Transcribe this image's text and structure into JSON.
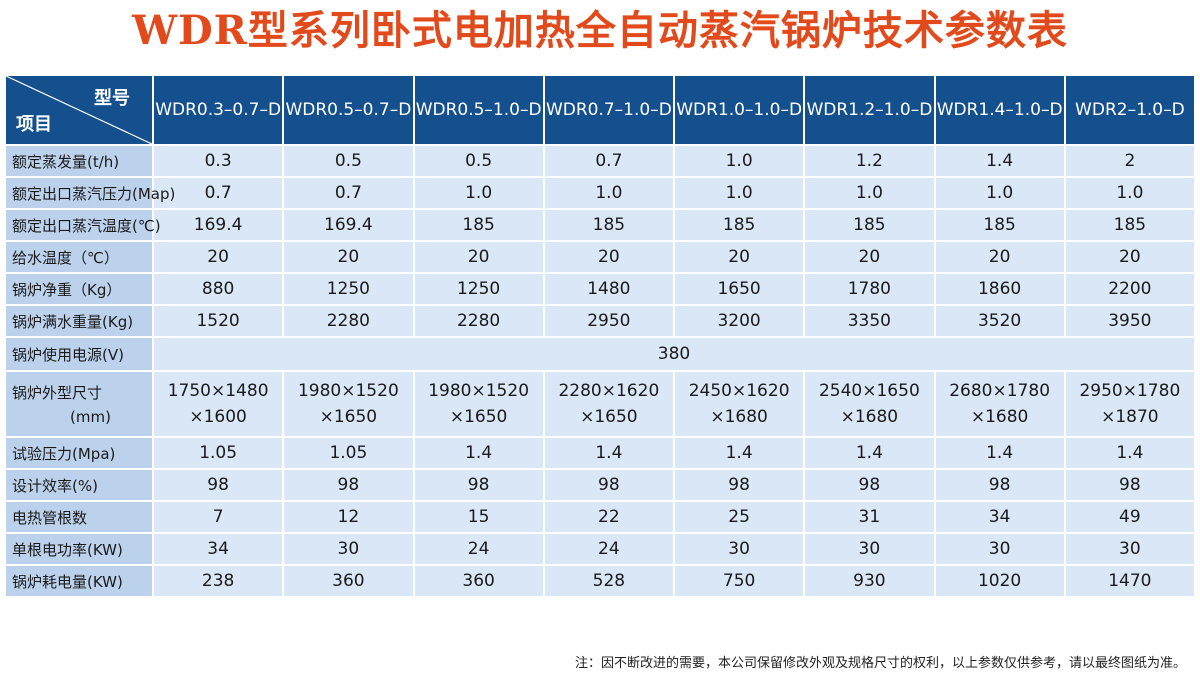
{
  "title": "WDR型系列卧式电加热全自动蒸汽锅炉技术参数表",
  "header": {
    "corner_model": "型号",
    "corner_item": "项目",
    "models": [
      "WDR0.3–0.7–D",
      "WDR0.5–0.7–D",
      "WDR0.5–1.0–D",
      "WDR0.7–1.0–D",
      "WDR1.0–1.0–D",
      "WDR1.2–1.0–D",
      "WDR1.4–1.0–D",
      "WDR2–1.0–D"
    ]
  },
  "rows": [
    {
      "label": "额定蒸发量(t/h)",
      "values": [
        "0.3",
        "0.5",
        "0.5",
        "0.7",
        "1.0",
        "1.2",
        "1.4",
        "2"
      ]
    },
    {
      "label": "额定出口蒸汽压力(Map)",
      "values": [
        "0.7",
        "0.7",
        "1.0",
        "1.0",
        "1.0",
        "1.0",
        "1.0",
        "1.0"
      ]
    },
    {
      "label": "额定出口蒸汽温度(℃)",
      "values": [
        "169.4",
        "169.4",
        "185",
        "185",
        "185",
        "185",
        "185",
        "185"
      ]
    },
    {
      "label": "给水温度（℃）",
      "values": [
        "20",
        "20",
        "20",
        "20",
        "20",
        "20",
        "20",
        "20"
      ]
    },
    {
      "label": "锅炉净重（Kg）",
      "values": [
        "880",
        "1250",
        "1250",
        "1480",
        "1650",
        "1780",
        "1860",
        "2200"
      ]
    },
    {
      "label": "锅炉满水重量(Kg)",
      "values": [
        "1520",
        "2280",
        "2280",
        "2950",
        "3200",
        "3350",
        "3520",
        "3950"
      ]
    },
    {
      "label": "锅炉使用电源(V)",
      "merged_value": "380"
    },
    {
      "label": "锅炉外型尺寸",
      "label2": "(mm)",
      "values_line1": [
        "1750×1480",
        "1980×1520",
        "1980×1520",
        "2280×1620",
        "2450×1620",
        "2540×1650",
        "2680×1780",
        "2950×1780"
      ],
      "values_line2": [
        "×1600",
        "×1650",
        "×1650",
        "×1650",
        "×1680",
        "×1680",
        "×1680",
        "×1870"
      ]
    },
    {
      "label": "试验压力(Mpa)",
      "values": [
        "1.05",
        "1.05",
        "1.4",
        "1.4",
        "1.4",
        "1.4",
        "1.4",
        "1.4"
      ]
    },
    {
      "label": "设计效率(%)",
      "values": [
        "98",
        "98",
        "98",
        "98",
        "98",
        "98",
        "98",
        "98"
      ]
    },
    {
      "label": "电热管根数",
      "values": [
        "7",
        "12",
        "15",
        "22",
        "25",
        "31",
        "34",
        "49"
      ]
    },
    {
      "label": "单根电功率(KW)",
      "values": [
        "34",
        "30",
        "24",
        "24",
        "30",
        "30",
        "30",
        "30"
      ]
    },
    {
      "label": "锅炉耗电量(KW)",
      "values": [
        "238",
        "360",
        "360",
        "528",
        "750",
        "930",
        "1020",
        "1470"
      ]
    }
  ],
  "note": "注：因不断改进的需要，本公司保留修改外观及规格尺寸的权利，以上参数仅供参考，请以最终图纸为准。",
  "colors": {
    "title": "#e2491b",
    "header_bg": "#15508e",
    "label_bg": "#bcd2ec",
    "cell_bg": "#d9e7f6"
  }
}
